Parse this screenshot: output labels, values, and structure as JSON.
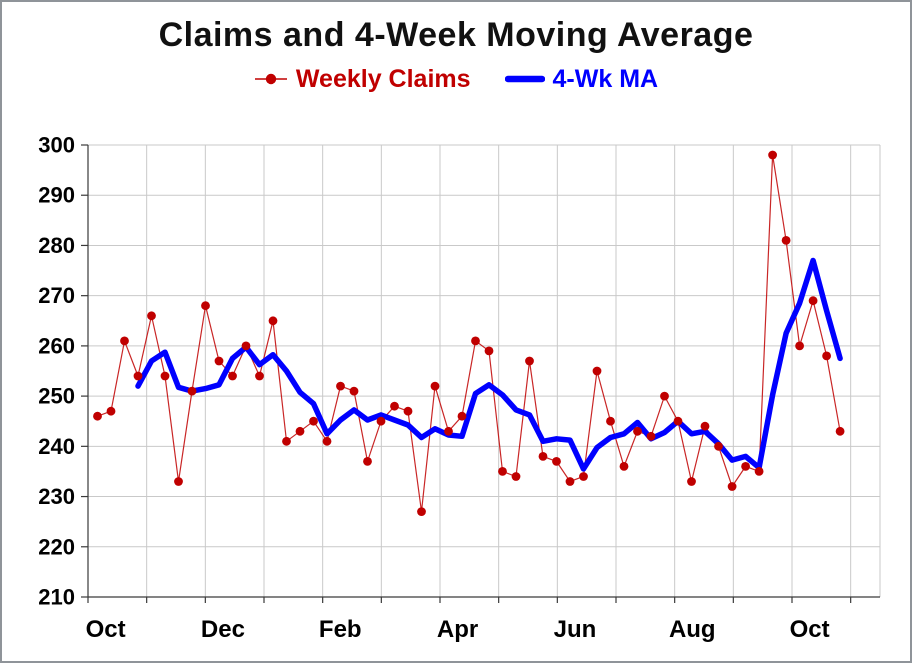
{
  "chart_data": {
    "type": "line",
    "title": "Claims and 4-Week Moving Average",
    "xlabel": "",
    "ylabel": "",
    "ylim": [
      210,
      300
    ],
    "y_ticks": [
      210,
      220,
      230,
      240,
      250,
      260,
      270,
      280,
      290,
      300
    ],
    "x_tick_labels": [
      "Oct",
      "Dec",
      "Feb",
      "Apr",
      "Jun",
      "Aug",
      "Oct"
    ],
    "x_tick_months": [
      0,
      2,
      4,
      6,
      8,
      10,
      12
    ],
    "x_gridline_months": 13,
    "x_months_span": 13.5,
    "grid": true,
    "legend_position": "top",
    "legend": [
      {
        "label": "Weekly Claims",
        "color": "#C00000",
        "marker": "line-with-dot"
      },
      {
        "label": "4-Wk MA",
        "color": "#0000FF",
        "marker": "thick-line"
      }
    ],
    "ma_window": 4,
    "series": [
      {
        "name": "Weekly Claims",
        "color": "#C00000",
        "style": "thin-line-with-markers",
        "values": [
          246,
          247,
          261,
          254,
          266,
          254,
          233,
          251,
          268,
          257,
          254,
          260,
          254,
          265,
          241,
          243,
          245,
          241,
          252,
          251,
          237,
          245,
          248,
          247,
          227,
          252,
          243,
          246,
          261,
          259,
          235,
          234,
          257,
          238,
          237,
          233,
          234,
          255,
          245,
          236,
          243,
          242,
          250,
          245,
          233,
          244,
          240,
          232,
          236,
          235,
          298,
          281,
          260,
          269,
          258,
          243
        ]
      },
      {
        "name": "4-Wk MA",
        "color": "#0000FF",
        "style": "thick-line",
        "values": [
          null,
          null,
          null,
          252,
          257,
          258.75,
          251.75,
          251,
          251.5,
          252.25,
          257.5,
          259.75,
          256.25,
          258.25,
          255,
          250.75,
          248.5,
          242.5,
          245.25,
          247.25,
          245.25,
          246.25,
          245.25,
          244.25,
          241.75,
          243.5,
          242.25,
          242,
          250.5,
          252.25,
          250.25,
          247.25,
          246.25,
          241,
          241.5,
          241.25,
          235.5,
          239.75,
          241.75,
          242.5,
          244.75,
          241.5,
          242.75,
          245,
          242.5,
          243,
          240.5,
          237.25,
          238,
          235.75,
          250.25,
          262.5,
          268.5,
          277,
          267,
          257.5
        ]
      }
    ]
  }
}
